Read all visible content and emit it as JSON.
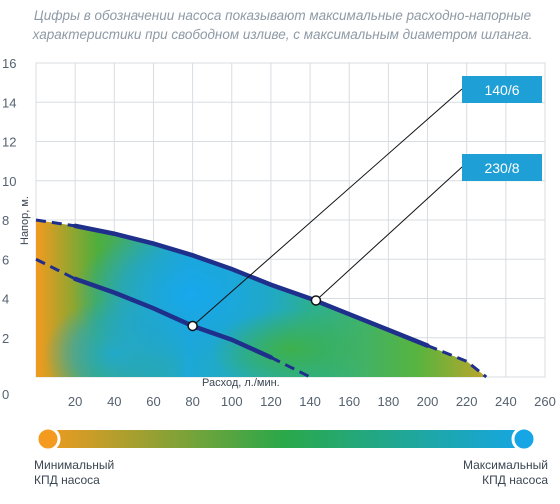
{
  "note": {
    "line1": "Цифры в обозначении насоса показывают максимальные расходно-напорные",
    "line2": "характеристики при свободном изливе, с максимальным диаметром шланга."
  },
  "chart_data": {
    "type": "line",
    "xlabel": "Расход, л./мин.",
    "ylabel": "Напор, м.",
    "xlim": [
      0,
      260
    ],
    "ylim": [
      0,
      16
    ],
    "x_ticks": [
      20,
      40,
      60,
      80,
      100,
      120,
      140,
      160,
      180,
      200,
      220,
      240,
      260
    ],
    "y_ticks": [
      0,
      2,
      4,
      6,
      8,
      10,
      12,
      14,
      16
    ],
    "grid": true,
    "series": [
      {
        "name": "140/6",
        "x": [
          0,
          20,
          40,
          60,
          80,
          100,
          120,
          130,
          140
        ],
        "y": [
          6.0,
          5.0,
          4.3,
          3.5,
          2.6,
          1.9,
          1.0,
          0.5,
          0.0
        ],
        "marker": {
          "x": 80,
          "y": 2.6
        },
        "color": "#1f2f8c"
      },
      {
        "name": "230/8",
        "x": [
          0,
          20,
          40,
          60,
          80,
          100,
          120,
          140,
          160,
          180,
          200,
          220,
          230
        ],
        "y": [
          8.0,
          7.7,
          7.3,
          6.8,
          6.2,
          5.5,
          4.7,
          4.0,
          3.2,
          2.4,
          1.6,
          0.8,
          0.0
        ],
        "marker": {
          "x": 143,
          "y": 3.9
        },
        "color": "#1f2f8c"
      }
    ],
    "colorbar": {
      "min_label": [
        "Минимальный",
        "КПД насоса"
      ],
      "max_label": [
        "Максимальный",
        "КПД насоса"
      ],
      "colors": [
        "#f39a1f",
        "#2aa84a",
        "#16a6e6"
      ]
    },
    "callout_color": "#1e9fd6"
  }
}
